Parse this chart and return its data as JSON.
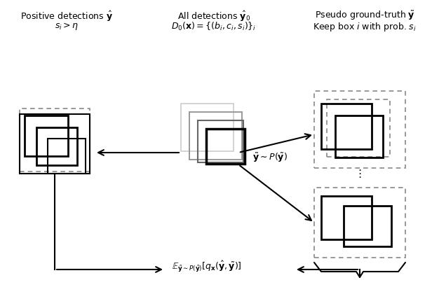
{
  "bg_color": "#ffffff",
  "fig_width": 6.16,
  "fig_height": 4.2,
  "dpi": 100,
  "header_left_line1": "Positive detections $\\hat{\\mathbf{y}}$",
  "header_left_line2": "$s_i > \\eta$",
  "header_mid_line1": "All detections $\\hat{\\mathbf{y}}_0$",
  "header_mid_line2": "$D_0(\\mathbf{x}) = \\{(b_i, c_i, s_i)\\}_i$",
  "header_right_line1": "Pseudo ground-truth $\\tilde{\\mathbf{y}}$",
  "header_right_line2": "Keep box $i$ with prob. $s_i$",
  "label_sampling": "$\\tilde{\\mathbf{y}} \\sim P(\\tilde{\\mathbf{y}})$",
  "label_expectation": "$\\mathbb{E}_{\\tilde{\\mathbf{y}}\\sim P(\\tilde{\\mathbf{y}})}[q_{\\mathbf{x}}(\\hat{\\mathbf{y}}, \\tilde{\\mathbf{y}})]$"
}
